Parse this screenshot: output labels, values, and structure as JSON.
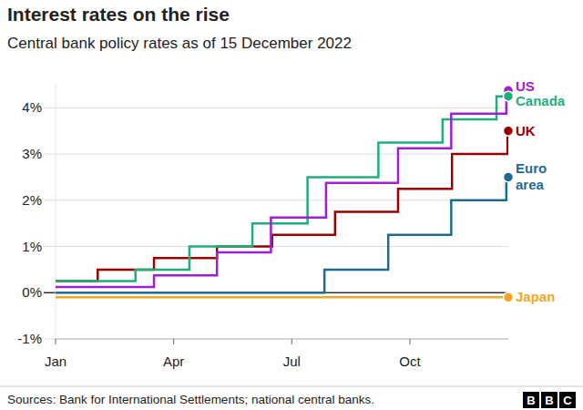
{
  "chart_data": {
    "type": "line",
    "line_style": "step",
    "title": "Interest rates on the rise",
    "subtitle": "Central bank policy rates as of 15 December 2022",
    "source": "Sources: Bank for International Settlements; national central banks.",
    "logo": "BBC",
    "grid": true,
    "xlim": [
      0,
      11.5
    ],
    "xticks": [
      {
        "value": 0,
        "label": "Jan"
      },
      {
        "value": 3,
        "label": "Apr"
      },
      {
        "value": 6,
        "label": "Jul"
      },
      {
        "value": 9,
        "label": "Oct"
      }
    ],
    "ylim": [
      -1,
      4.5
    ],
    "yticks": [
      {
        "value": -1,
        "label": "-1%"
      },
      {
        "value": 0,
        "label": "0%"
      },
      {
        "value": 1,
        "label": "1%"
      },
      {
        "value": 2,
        "label": "2%"
      },
      {
        "value": 3,
        "label": "3%"
      },
      {
        "value": 4,
        "label": "4%"
      }
    ],
    "series": [
      {
        "name": "US",
        "color": "#a020d0",
        "x": [
          0,
          2.5,
          4.1,
          5.47,
          6.87,
          8.7,
          10.05,
          11.45,
          11.5
        ],
        "values": [
          0.125,
          0.375,
          0.875,
          1.625,
          2.375,
          3.125,
          3.875,
          4.375,
          4.375
        ]
      },
      {
        "name": "Canada",
        "color": "#1fae7c",
        "x": [
          0,
          2.03,
          3.4,
          5.0,
          6.4,
          8.2,
          9.83,
          11.2,
          11.5
        ],
        "values": [
          0.25,
          0.5,
          1,
          1.5,
          2.5,
          3.25,
          3.75,
          4.25,
          4.25
        ]
      },
      {
        "name": "UK",
        "color": "#990000",
        "x": [
          0,
          1.07,
          2.5,
          4.1,
          5.5,
          7.1,
          8.7,
          10.07,
          11.48,
          11.5
        ],
        "values": [
          0.25,
          0.5,
          0.75,
          1,
          1.25,
          1.75,
          2.25,
          3,
          3.5,
          3.5
        ]
      },
      {
        "name": "Euro area",
        "color": "#1f6a8f",
        "x": [
          0,
          6.83,
          8.45,
          10.05,
          11.45,
          11.5
        ],
        "values": [
          0,
          0.5,
          1.25,
          2,
          2.5,
          2.5
        ]
      },
      {
        "name": "Japan",
        "color": "#f5a623",
        "x": [
          0,
          11.5
        ],
        "values": [
          -0.1,
          -0.1
        ]
      }
    ]
  }
}
